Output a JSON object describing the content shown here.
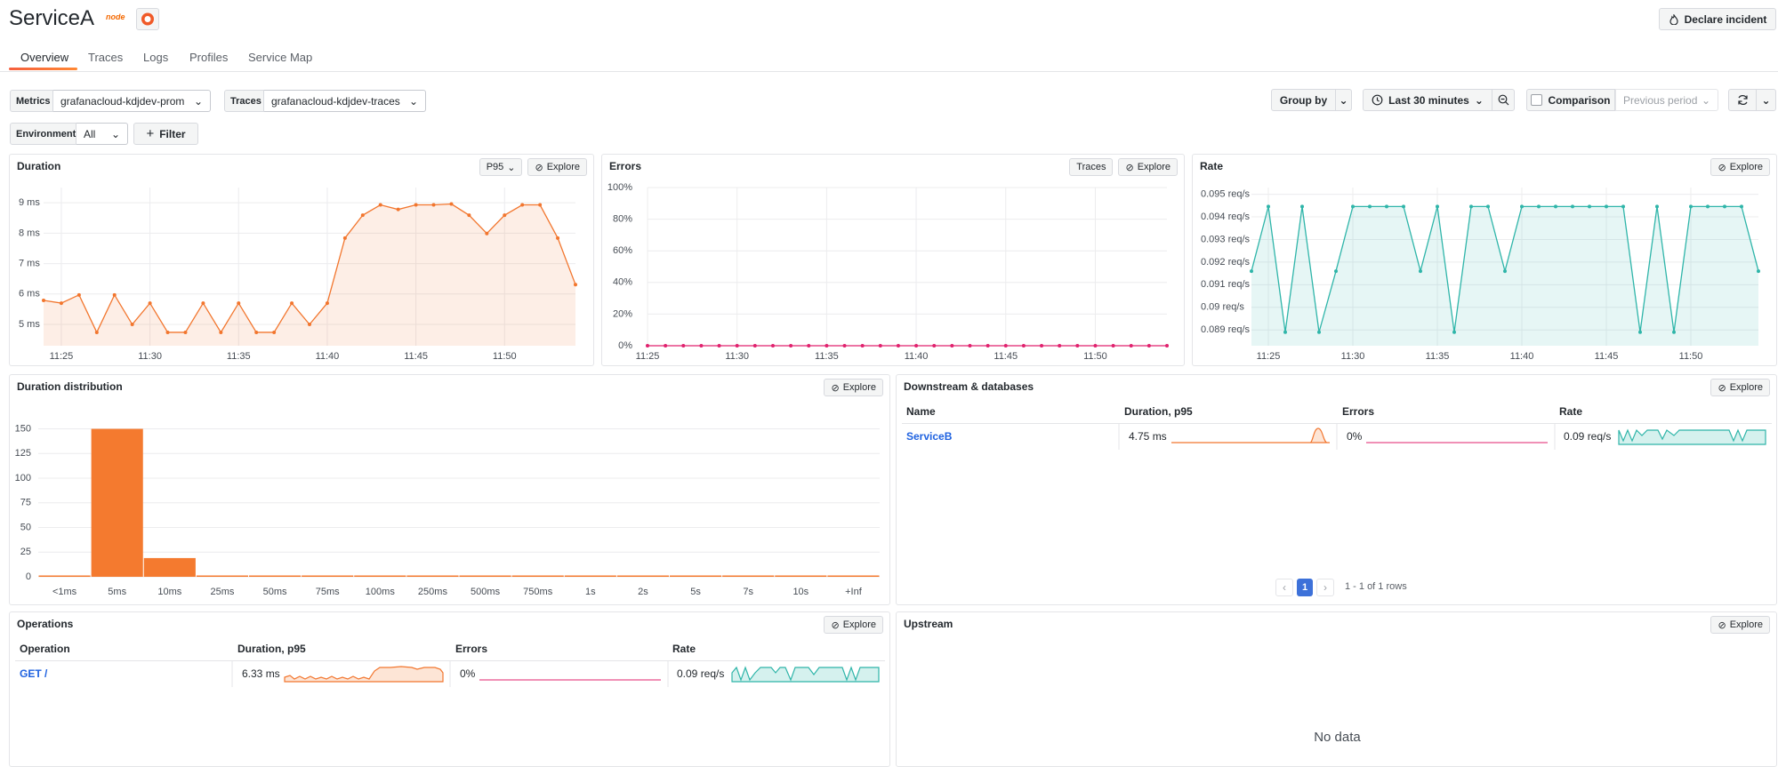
{
  "header": {
    "title": "ServiceA",
    "badge": "node",
    "declare": "Declare incident"
  },
  "tabs": [
    "Overview",
    "Traces",
    "Logs",
    "Profiles",
    "Service Map"
  ],
  "filters": {
    "metrics_label": "Metrics",
    "metrics_value": "grafanacloud-kdjdev-prom",
    "traces_label": "Traces",
    "traces_value": "grafanacloud-kdjdev-traces",
    "environment_label": "Environment",
    "environment_value": "All",
    "filter": "Filter",
    "group_by": "Group by",
    "time_range": "Last 30 minutes",
    "comparison": "Comparison",
    "comparison_period": "Previous period"
  },
  "panels": {
    "duration": {
      "title": "Duration",
      "select": "P95",
      "explore": "Explore",
      "chart_data": {
        "type": "line",
        "color": "#f2762e",
        "fill": true,
        "grid": true,
        "categories": [
          null,
          "11:25",
          null,
          null,
          null,
          null,
          "11:30",
          null,
          null,
          null,
          null,
          "11:35",
          null,
          null,
          null,
          null,
          "11:40",
          null,
          null,
          null,
          null,
          "11:45",
          null,
          null,
          null,
          null,
          "11:50",
          null,
          null,
          null,
          null
        ],
        "values": [
          5.79,
          5.7,
          5.97,
          4.74,
          5.97,
          5.0,
          5.7,
          4.74,
          4.74,
          5.7,
          4.74,
          5.7,
          4.74,
          4.74,
          5.7,
          5.0,
          5.7,
          7.84,
          8.59,
          8.93,
          8.78,
          8.93,
          8.93,
          8.96,
          8.59,
          7.99,
          8.59,
          8.93,
          8.93,
          7.84,
          6.31
        ],
        "ylim": [
          4.3,
          9.5
        ],
        "yticks": [
          {
            "value": 5,
            "label": "5 ms"
          },
          {
            "value": 6,
            "label": "6 ms"
          },
          {
            "value": 7,
            "label": "7 ms"
          },
          {
            "value": 8,
            "label": "8 ms"
          },
          {
            "value": 9,
            "label": "9 ms"
          }
        ]
      }
    },
    "errors": {
      "title": "Errors",
      "traces": "Traces",
      "explore": "Explore",
      "chart_data": {
        "type": "line",
        "color": "#e0226e",
        "fill": false,
        "grid": true,
        "categories": [
          "11:25",
          null,
          null,
          null,
          null,
          "11:30",
          null,
          null,
          null,
          null,
          "11:35",
          null,
          null,
          null,
          null,
          "11:40",
          null,
          null,
          null,
          null,
          "11:45",
          null,
          null,
          null,
          null,
          "11:50",
          null,
          null,
          null,
          null
        ],
        "values": [
          0,
          0,
          0,
          0,
          0,
          0,
          0,
          0,
          0,
          0,
          0,
          0,
          0,
          0,
          0,
          0,
          0,
          0,
          0,
          0,
          0,
          0,
          0,
          0,
          0,
          0,
          0,
          0,
          0,
          0
        ],
        "ylim": [
          0,
          100
        ],
        "yticks": [
          {
            "value": 0,
            "label": "0%"
          },
          {
            "value": 20,
            "label": "20%"
          },
          {
            "value": 40,
            "label": "40%"
          },
          {
            "value": 60,
            "label": "60%"
          },
          {
            "value": 80,
            "label": "80%"
          },
          {
            "value": 100,
            "label": "100%"
          }
        ]
      }
    },
    "rate": {
      "title": "Rate",
      "explore": "Explore",
      "chart_data": {
        "type": "line",
        "color": "#2fb5a9",
        "fill": true,
        "grid": true,
        "categories": [
          null,
          "11:25",
          null,
          null,
          null,
          null,
          "11:30",
          null,
          null,
          null,
          null,
          "11:35",
          null,
          null,
          null,
          null,
          "11:40",
          null,
          null,
          null,
          null,
          "11:45",
          null,
          null,
          null,
          null,
          "11:50",
          null,
          null,
          null,
          null
        ],
        "values": [
          0.0916,
          0.09446,
          0.0889,
          0.09446,
          0.0889,
          0.0916,
          0.09446,
          0.09446,
          0.09446,
          0.09446,
          0.0916,
          0.09446,
          0.0889,
          0.09446,
          0.09446,
          0.0916,
          0.09446,
          0.09446,
          0.09446,
          0.09446,
          0.09446,
          0.09446,
          0.09446,
          0.0889,
          0.09446,
          0.0889,
          0.09446,
          0.09446,
          0.09446,
          0.09446,
          0.0916
        ],
        "ylim": [
          0.0883,
          0.0953
        ],
        "yticks": [
          {
            "value": 0.089,
            "label": "0.089 req/s"
          },
          {
            "value": 0.09,
            "label": "0.09 req/s"
          },
          {
            "value": 0.091,
            "label": "0.091 req/s"
          },
          {
            "value": 0.092,
            "label": "0.092 req/s"
          },
          {
            "value": 0.093,
            "label": "0.093 req/s"
          },
          {
            "value": 0.094,
            "label": "0.094 req/s"
          },
          {
            "value": 0.095,
            "label": "0.095 req/s"
          }
        ]
      }
    },
    "distribution": {
      "title": "Duration distribution",
      "explore": "Explore",
      "chart_data": {
        "type": "bar",
        "color": "#f47a2f",
        "grid": true,
        "categories": [
          "<1ms",
          "5ms",
          "10ms",
          "25ms",
          "50ms",
          "75ms",
          "100ms",
          "250ms",
          "500ms",
          "750ms",
          "1s",
          "2s",
          "5s",
          "7s",
          "10s",
          "+Inf"
        ],
        "values": [
          0,
          150,
          19,
          0,
          0,
          0,
          0,
          0,
          0,
          0,
          0,
          0,
          0,
          0,
          0,
          0
        ],
        "ylim": [
          0,
          164
        ],
        "yticks": [
          0,
          25,
          50,
          75,
          100,
          125,
          150
        ]
      }
    },
    "downstream": {
      "title": "Downstream & databases",
      "explore": "Explore",
      "table": {
        "columns": [
          "Name",
          "Duration, p95",
          "Errors",
          "Rate"
        ],
        "rows": [
          [
            "ServiceB",
            "4.75 ms",
            "0%",
            "0.09 req/s"
          ]
        ]
      },
      "page": "1",
      "summary": "1 - 1 of 1 rows"
    },
    "operations": {
      "title": "Operations",
      "explore": "Explore",
      "table": {
        "columns": [
          "Operation",
          "Duration, p95",
          "Errors",
          "Rate"
        ],
        "rows": [
          [
            "GET /",
            "6.33 ms",
            "0%",
            "0.09 req/s"
          ]
        ]
      }
    },
    "upstream": {
      "title": "Upstream",
      "explore": "Explore",
      "empty": "No data"
    }
  }
}
